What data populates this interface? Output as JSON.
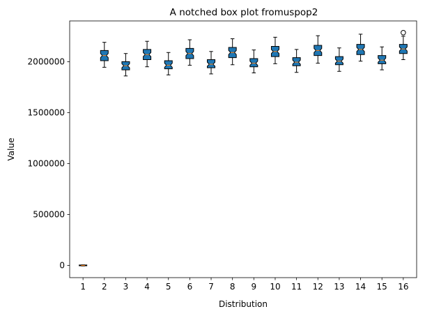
{
  "chart_data": {
    "type": "boxplot",
    "notched": true,
    "title": "A notched box plot fromuspop2",
    "xlabel": "Distribution",
    "ylabel": "Value",
    "ylim": [
      -120000,
      2400000
    ],
    "yticks": [
      0,
      500000,
      1000000,
      1500000,
      2000000
    ],
    "ytick_labels": [
      "0",
      "500000",
      "1000000",
      "1500000",
      "2000000"
    ],
    "categories": [
      "1",
      "2",
      "3",
      "4",
      "5",
      "6",
      "7",
      "8",
      "9",
      "10",
      "11",
      "12",
      "13",
      "14",
      "15",
      "16"
    ],
    "box_color": "#1f77b4",
    "median_color": "#ff7f0e",
    "boxes": [
      {
        "label": "1",
        "whisker_low": -5000,
        "q1": -4000,
        "median": 0,
        "q3": 4000,
        "whisker_high": 5000,
        "notch_low": -2000,
        "notch_high": 2000,
        "outliers": []
      },
      {
        "label": "2",
        "whisker_low": 1945000,
        "q1": 2010000,
        "median": 2060000,
        "q3": 2110000,
        "whisker_high": 2190000,
        "notch_low": 2040000,
        "notch_high": 2080000,
        "outliers": []
      },
      {
        "label": "3",
        "whisker_low": 1860000,
        "q1": 1920000,
        "median": 1960000,
        "q3": 2000000,
        "whisker_high": 2080000,
        "notch_low": 1940000,
        "notch_high": 1980000,
        "outliers": []
      },
      {
        "label": "4",
        "whisker_low": 1950000,
        "q1": 2020000,
        "median": 2070000,
        "q3": 2120000,
        "whisker_high": 2200000,
        "notch_low": 2050000,
        "notch_high": 2090000,
        "outliers": []
      },
      {
        "label": "5",
        "whisker_low": 1870000,
        "q1": 1930000,
        "median": 1965000,
        "q3": 2010000,
        "whisker_high": 2090000,
        "notch_low": 1945000,
        "notch_high": 1985000,
        "outliers": []
      },
      {
        "label": "6",
        "whisker_low": 1965000,
        "q1": 2030000,
        "median": 2080000,
        "q3": 2130000,
        "whisker_high": 2215000,
        "notch_low": 2060000,
        "notch_high": 2100000,
        "outliers": []
      },
      {
        "label": "7",
        "whisker_low": 1880000,
        "q1": 1940000,
        "median": 1975000,
        "q3": 2020000,
        "whisker_high": 2100000,
        "notch_low": 1955000,
        "notch_high": 1995000,
        "outliers": []
      },
      {
        "label": "8",
        "whisker_low": 1970000,
        "q1": 2040000,
        "median": 2090000,
        "q3": 2140000,
        "whisker_high": 2225000,
        "notch_low": 2070000,
        "notch_high": 2110000,
        "outliers": []
      },
      {
        "label": "9",
        "whisker_low": 1890000,
        "q1": 1950000,
        "median": 1985000,
        "q3": 2030000,
        "whisker_high": 2115000,
        "notch_low": 1965000,
        "notch_high": 2005000,
        "outliers": []
      },
      {
        "label": "10",
        "whisker_low": 1980000,
        "q1": 2050000,
        "median": 2100000,
        "q3": 2150000,
        "whisker_high": 2240000,
        "notch_low": 2080000,
        "notch_high": 2120000,
        "outliers": []
      },
      {
        "label": "11",
        "whisker_low": 1895000,
        "q1": 1960000,
        "median": 1995000,
        "q3": 2040000,
        "whisker_high": 2120000,
        "notch_low": 1975000,
        "notch_high": 2015000,
        "outliers": []
      },
      {
        "label": "12",
        "whisker_low": 1985000,
        "q1": 2060000,
        "median": 2110000,
        "q3": 2160000,
        "whisker_high": 2255000,
        "notch_low": 2090000,
        "notch_high": 2130000,
        "outliers": []
      },
      {
        "label": "13",
        "whisker_low": 1905000,
        "q1": 1970000,
        "median": 2005000,
        "q3": 2050000,
        "whisker_high": 2135000,
        "notch_low": 1985000,
        "notch_high": 2025000,
        "outliers": []
      },
      {
        "label": "14",
        "whisker_low": 2005000,
        "q1": 2070000,
        "median": 2120000,
        "q3": 2170000,
        "whisker_high": 2270000,
        "notch_low": 2100000,
        "notch_high": 2140000,
        "outliers": []
      },
      {
        "label": "15",
        "whisker_low": 1920000,
        "q1": 1980000,
        "median": 2015000,
        "q3": 2060000,
        "whisker_high": 2145000,
        "notch_low": 1995000,
        "notch_high": 2035000,
        "outliers": []
      },
      {
        "label": "16",
        "whisker_low": 2020000,
        "q1": 2080000,
        "median": 2125000,
        "q3": 2170000,
        "whisker_high": 2250000,
        "notch_low": 2105000,
        "notch_high": 2145000,
        "outliers": [
          2285000
        ]
      }
    ]
  }
}
